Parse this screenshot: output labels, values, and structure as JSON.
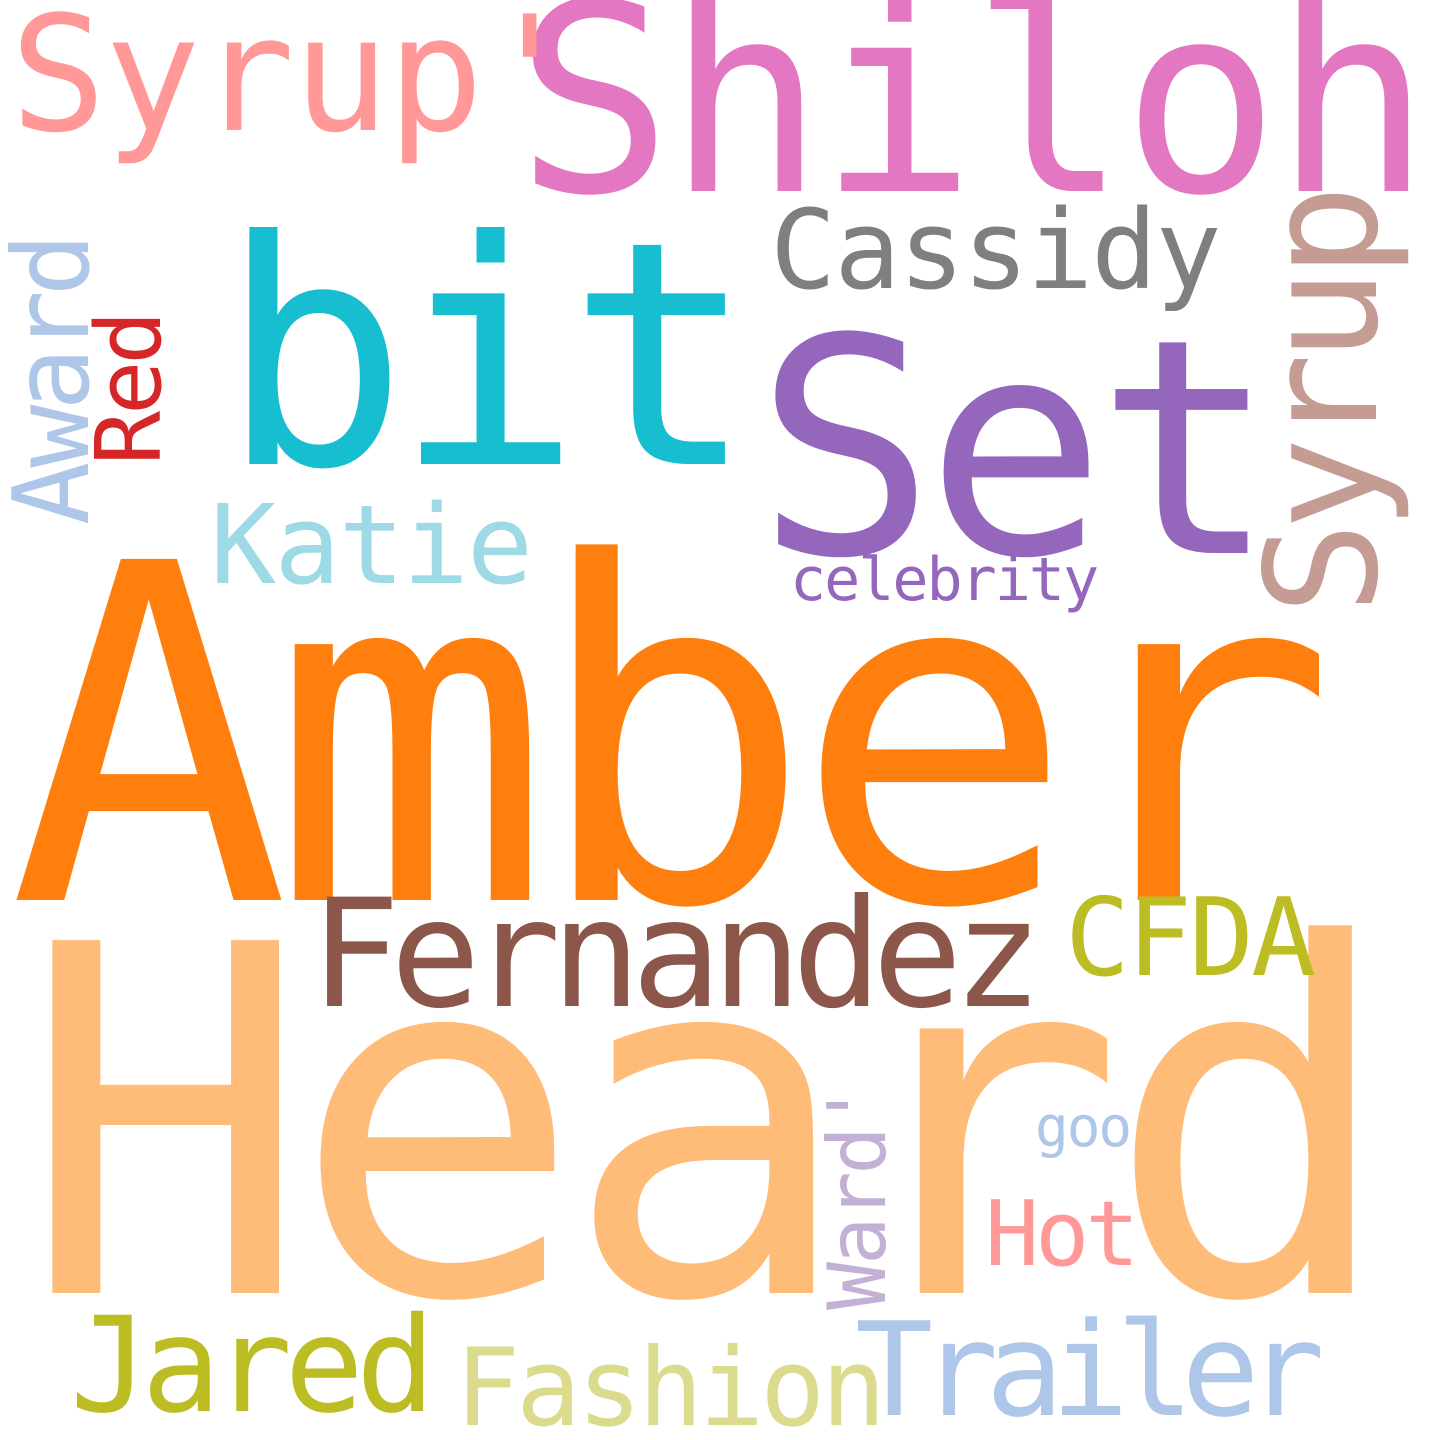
{
  "words": [
    {
      "key": "heard",
      "text": "Heard",
      "color": "#ffbb78"
    },
    {
      "key": "amber",
      "text": "Amber",
      "color": "#ff7f0e"
    },
    {
      "key": "shiloh",
      "text": "Shiloh",
      "color": "#e377c2"
    },
    {
      "key": "set",
      "text": "Set",
      "color": "#9467bd"
    },
    {
      "key": "bit",
      "text": "bit",
      "color": "#17becf"
    },
    {
      "key": "syrup_quote",
      "text": "Syrup'",
      "color": "#ff9896"
    },
    {
      "key": "fernandez",
      "text": "Fernandez",
      "color": "#8c564b"
    },
    {
      "key": "cassidy",
      "text": "Cassidy",
      "color": "#7f7f7f"
    },
    {
      "key": "syrup",
      "text": "Syrup",
      "color": "#c49c94"
    },
    {
      "key": "katie",
      "text": "Katie",
      "color": "#9edae5"
    },
    {
      "key": "award",
      "text": "Award",
      "color": "#aec7e8"
    },
    {
      "key": "red",
      "text": "Red",
      "color": "#d62728"
    },
    {
      "key": "celebrity",
      "text": "celebrity",
      "color": "#9467bd"
    },
    {
      "key": "cfda",
      "text": "CFDA",
      "color": "#bcbd22"
    },
    {
      "key": "jared",
      "text": "Jared",
      "color": "#bcbd22"
    },
    {
      "key": "trailer",
      "text": "Trailer",
      "color": "#aec7e8"
    },
    {
      "key": "fashion",
      "text": "Fashion",
      "color": "#dbdb8d"
    },
    {
      "key": "ward_quote",
      "text": "Ward'",
      "color": "#c5b0d5"
    },
    {
      "key": "hot",
      "text": "Hot",
      "color": "#ff9896"
    },
    {
      "key": "goo",
      "text": "goo",
      "color": "#aec7e8"
    }
  ]
}
